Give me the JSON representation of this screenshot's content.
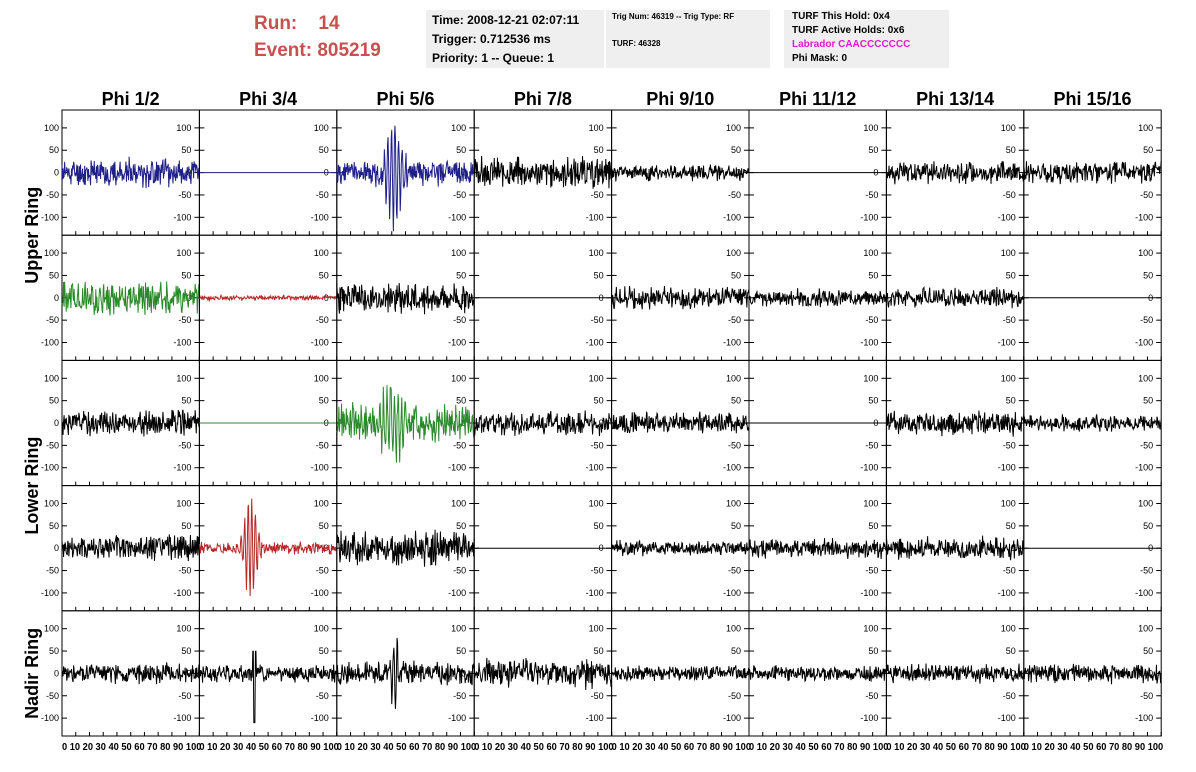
{
  "header": {
    "run_label": "Run:",
    "run_value": "14",
    "event_label": "Event:",
    "event_value": "805219",
    "time_line": "Time: 2008-12-21 02:07:11",
    "trigger_line": "Trigger: 0.712536 ms",
    "priority_line": "Priority: 1 -- Queue: 1",
    "trig_num_line": "Trig Num: 46319 -- Trig Type: RF",
    "turf_line": "TURF: 46328",
    "turf_hold_line": "TURF This Hold: 0x4",
    "turf_active_line": "TURF Active Holds: 0x6",
    "labrador_line": "Labrador CAACCCCCCC",
    "phi_mask_line": "Phi Mask: 0"
  },
  "colors": {
    "header_red": "#c8504f",
    "labrador_magenta": "#e01ad0",
    "black": "#000000",
    "blue": "#20208a",
    "green": "#2a8a2a",
    "red": "#b82828"
  },
  "chart_data": {
    "type": "line",
    "columns": [
      "Phi 1/2",
      "Phi 3/4",
      "Phi 5/6",
      "Phi 7/8",
      "Phi 9/10",
      "Phi 11/12",
      "Phi 13/14",
      "Phi 15/16"
    ],
    "rows": [
      "Upper Ring",
      "Upper Ring",
      "Lower Ring",
      "Lower Ring",
      "Nadir Ring"
    ],
    "row_labels": [
      {
        "text": "Upper Ring",
        "rows": [
          0,
          1
        ]
      },
      {
        "text": "Lower Ring",
        "rows": [
          2,
          3
        ]
      },
      {
        "text": "Nadir Ring",
        "rows": [
          4
        ]
      }
    ],
    "xlim": [
      0,
      100
    ],
    "ylim": [
      -140,
      140
    ],
    "y_ticks": [
      -100,
      -50,
      0,
      50,
      100
    ],
    "x_ticks": [
      0,
      10,
      20,
      30,
      40,
      50,
      60,
      70,
      80,
      90,
      100
    ],
    "x_tick_labels": "0 10 20 30 40 50 60 70 80 90 100",
    "waveform_duration": 100,
    "grid": false,
    "panels": [
      [
        {
          "color": "#20208a",
          "amp": 28,
          "type": "noise",
          "seed": 11
        },
        {
          "color": "#20208a",
          "amp": 0,
          "type": "flat",
          "seed": 12
        },
        {
          "color": "#20208a",
          "amp": 25,
          "type": "pulse",
          "peak": 140,
          "center": 42,
          "width": 7,
          "seed": 13
        },
        {
          "color": "#000000",
          "amp": 30,
          "type": "noise",
          "seed": 14
        },
        {
          "color": "#000000",
          "amp": 16,
          "type": "noise",
          "seed": 15
        },
        {
          "color": "#000000",
          "amp": 0,
          "type": "flat",
          "seed": 16
        },
        {
          "color": "#000000",
          "amp": 22,
          "type": "noise",
          "seed": 17
        },
        {
          "color": "#000000",
          "amp": 22,
          "type": "noise",
          "seed": 18
        }
      ],
      [
        {
          "color": "#2a8a2a",
          "amp": 34,
          "type": "noise",
          "seed": 21
        },
        {
          "color": "#b82828",
          "amp": 5,
          "type": "noise",
          "seed": 22
        },
        {
          "color": "#000000",
          "amp": 32,
          "type": "noise",
          "seed": 23
        },
        {
          "color": "#000000",
          "amp": 0,
          "type": "flat",
          "seed": 24
        },
        {
          "color": "#000000",
          "amp": 22,
          "type": "noise",
          "seed": 25
        },
        {
          "color": "#000000",
          "amp": 17,
          "type": "noise",
          "seed": 26
        },
        {
          "color": "#000000",
          "amp": 19,
          "type": "noise",
          "seed": 27
        },
        {
          "color": "#000000",
          "amp": 0,
          "type": "flat",
          "seed": 28
        }
      ],
      [
        {
          "color": "#000000",
          "amp": 25,
          "type": "noise",
          "seed": 31
        },
        {
          "color": "#2a8a2a",
          "amp": 0,
          "type": "flat",
          "seed": 32
        },
        {
          "color": "#2a8a2a",
          "amp": 38,
          "type": "pulse",
          "peak": 100,
          "center": 40,
          "width": 10,
          "seed": 33
        },
        {
          "color": "#000000",
          "amp": 24,
          "type": "noise",
          "seed": 34
        },
        {
          "color": "#000000",
          "amp": 22,
          "type": "noise",
          "seed": 35
        },
        {
          "color": "#000000",
          "amp": 0,
          "type": "flat",
          "seed": 36
        },
        {
          "color": "#000000",
          "amp": 25,
          "type": "noise",
          "seed": 37
        },
        {
          "color": "#000000",
          "amp": 16,
          "type": "noise",
          "seed": 38
        }
      ],
      [
        {
          "color": "#000000",
          "amp": 26,
          "type": "noise",
          "seed": 41
        },
        {
          "color": "#b82828",
          "amp": 12,
          "type": "pulse",
          "peak": 130,
          "center": 37,
          "width": 6,
          "seed": 42
        },
        {
          "color": "#000000",
          "amp": 34,
          "type": "noise",
          "seed": 43
        },
        {
          "color": "#000000",
          "amp": 0,
          "type": "flat",
          "seed": 44
        },
        {
          "color": "#000000",
          "amp": 15,
          "type": "noise",
          "seed": 45
        },
        {
          "color": "#000000",
          "amp": 19,
          "type": "noise",
          "seed": 46
        },
        {
          "color": "#000000",
          "amp": 22,
          "type": "noise",
          "seed": 47
        },
        {
          "color": "#000000",
          "amp": 0,
          "type": "flat",
          "seed": 48
        }
      ],
      [
        {
          "color": "#000000",
          "amp": 20,
          "type": "noise",
          "seed": 51
        },
        {
          "color": "#000000",
          "amp": 18,
          "type": "spike",
          "peak": -110,
          "center": 40,
          "seed": 52
        },
        {
          "color": "#000000",
          "amp": 24,
          "type": "pulse",
          "peak": 115,
          "center": 42,
          "width": 3,
          "seed": 53
        },
        {
          "color": "#000000",
          "amp": 30,
          "type": "noise",
          "seed": 54
        },
        {
          "color": "#000000",
          "amp": 15,
          "type": "noise",
          "seed": 55
        },
        {
          "color": "#000000",
          "amp": 15,
          "type": "noise",
          "seed": 56
        },
        {
          "color": "#000000",
          "amp": 18,
          "type": "noise",
          "seed": 57
        },
        {
          "color": "#000000",
          "amp": 19,
          "type": "noise",
          "seed": 58
        }
      ]
    ]
  }
}
